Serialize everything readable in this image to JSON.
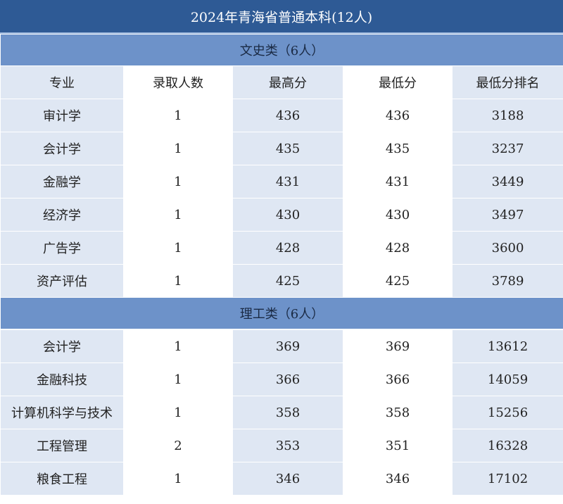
{
  "title": "2024年青海省普通本科(12人)",
  "columns": [
    "专业",
    "录取人数",
    "最高分",
    "最低分",
    "最低分排名"
  ],
  "sections": [
    {
      "label": "文史类（6人）",
      "rows": [
        [
          "审计学",
          "1",
          "436",
          "436",
          "3188"
        ],
        [
          "会计学",
          "1",
          "435",
          "435",
          "3237"
        ],
        [
          "金融学",
          "1",
          "431",
          "431",
          "3449"
        ],
        [
          "经济学",
          "1",
          "430",
          "430",
          "3497"
        ],
        [
          "广告学",
          "1",
          "428",
          "428",
          "3600"
        ],
        [
          "资产评估",
          "1",
          "425",
          "425",
          "3789"
        ]
      ]
    },
    {
      "label": "理工类（6人）",
      "rows": [
        [
          "会计学",
          "1",
          "369",
          "369",
          "13612"
        ],
        [
          "金融科技",
          "1",
          "366",
          "366",
          "14059"
        ],
        [
          "计算机科学与技术",
          "1",
          "358",
          "358",
          "15256"
        ],
        [
          "工程管理",
          "2",
          "353",
          "351",
          "16328"
        ],
        [
          "粮食工程",
          "1",
          "346",
          "346",
          "17102"
        ]
      ]
    }
  ]
}
